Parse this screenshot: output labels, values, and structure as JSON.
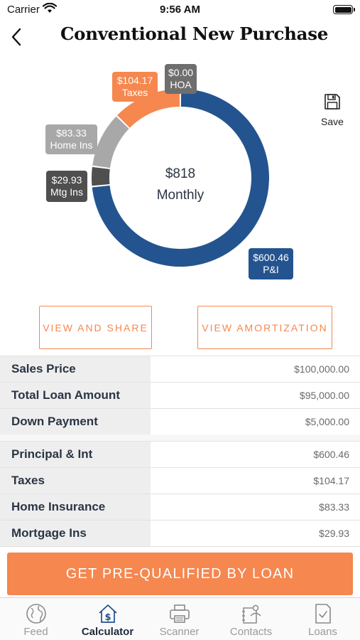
{
  "status_bar": {
    "carrier": "Carrier",
    "time": "9:56 AM"
  },
  "header": {
    "title": "Conventional New Purchase"
  },
  "chart_data": {
    "type": "pie",
    "style": "donut",
    "center_amount": "$818",
    "center_label": "Monthly",
    "slices": [
      {
        "name": "P&I",
        "label": "$600.46",
        "value": 600.46,
        "color": "#24548f"
      },
      {
        "name": "Mtg Ins",
        "label": "$29.93",
        "value": 29.93,
        "color": "#4f4f4f"
      },
      {
        "name": "Home Ins",
        "label": "$83.33",
        "value": 83.33,
        "color": "#a8a8a8"
      },
      {
        "name": "Taxes",
        "label": "$104.17",
        "value": 104.17,
        "color": "#f5874f"
      },
      {
        "name": "HOA",
        "label": "$0.00",
        "value": 0.0,
        "color": "#6e6e6e"
      }
    ]
  },
  "save": {
    "label": "Save",
    "icon": "floppy-disk-icon"
  },
  "buttons": {
    "view_share": "VIEW AND SHARE",
    "view_amortization": "VIEW AMORTIZATION"
  },
  "loan_summary": [
    {
      "label": "Sales Price",
      "value": "$100,000.00"
    },
    {
      "label": "Total Loan Amount",
      "value": "$95,000.00"
    },
    {
      "label": "Down Payment",
      "value": "$5,000.00"
    }
  ],
  "payment_breakdown": [
    {
      "label": "Principal & Int",
      "value": "$600.46"
    },
    {
      "label": "Taxes",
      "value": "$104.17"
    },
    {
      "label": "Home Insurance",
      "value": "$83.33"
    },
    {
      "label": "Mortgage Ins",
      "value": "$29.93"
    }
  ],
  "cta": {
    "label": "GET PRE-QUALIFIED BY LOAN"
  },
  "tabs": [
    {
      "label": "Feed",
      "icon": "globe-icon",
      "active": false
    },
    {
      "label": "Calculator",
      "icon": "house-dollar-icon",
      "active": true
    },
    {
      "label": "Scanner",
      "icon": "printer-icon",
      "active": false
    },
    {
      "label": "Contacts",
      "icon": "contacts-icon",
      "active": false
    },
    {
      "label": "Loans",
      "icon": "document-check-icon",
      "active": false
    }
  ],
  "colors": {
    "accent": "#f5874f",
    "primary_blue": "#24548f",
    "text_dark": "#1f2a3a"
  }
}
